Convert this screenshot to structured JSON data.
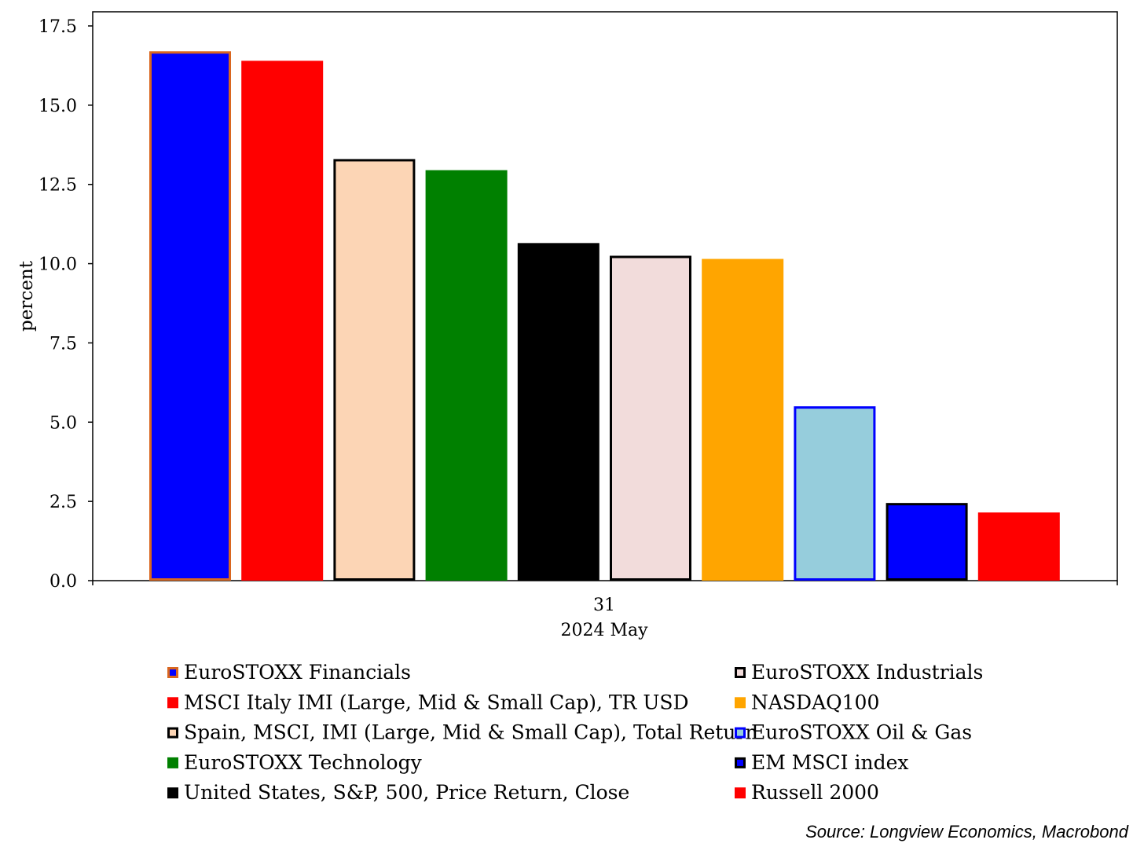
{
  "chart_data": {
    "type": "bar",
    "title": "",
    "ylabel": "percent",
    "xlabel": "",
    "ylim": [
      0,
      17.5
    ],
    "yticks": [
      "0.0",
      "2.5",
      "5.0",
      "7.5",
      "10.0",
      "12.5",
      "15.0",
      "17.5"
    ],
    "ytick_values": [
      0,
      2.5,
      5,
      7.5,
      10,
      12.5,
      15,
      17.5
    ],
    "x_tick_label": "31",
    "x_group_label": "2024 May",
    "grid": false,
    "legend_position": "bottom",
    "series": [
      {
        "name": "EuroSTOXX Financials",
        "value": 16.7,
        "fill": "#0000ff",
        "stroke": "#d9661f"
      },
      {
        "name": "MSCI Italy IMI (Large, Mid & Small Cap), TR USD",
        "value": 16.4,
        "fill": "#ff0000",
        "stroke": "#ff0000"
      },
      {
        "name": "Spain, MSCI, IMI (Large, Mid & Small Cap), Total Return",
        "value": 13.3,
        "fill": "#fcd5b5",
        "stroke": "#000000"
      },
      {
        "name": "EuroSTOXX Technology",
        "value": 12.95,
        "fill": "#008000",
        "stroke": "#008000"
      },
      {
        "name": "United States, S&P, 500, Price Return, Close",
        "value": 10.65,
        "fill": "#000000",
        "stroke": "#000000"
      },
      {
        "name": "EuroSTOXX Industrials",
        "value": 10.25,
        "fill": "#f2dcdb",
        "stroke": "#000000"
      },
      {
        "name": "NASDAQ100",
        "value": 10.15,
        "fill": "#ffa500",
        "stroke": "#ffa500"
      },
      {
        "name": "EuroSTOXX Oil & Gas",
        "value": 5.5,
        "fill": "#96cddc",
        "stroke": "#0000ff"
      },
      {
        "name": "EM MSCI index",
        "value": 2.45,
        "fill": "#0000ff",
        "stroke": "#000000"
      },
      {
        "name": "Russell 2000",
        "value": 2.15,
        "fill": "#ff0000",
        "stroke": "#ff0000"
      }
    ],
    "legend_order": [
      0,
      1,
      2,
      3,
      4,
      5,
      6,
      7,
      8,
      9
    ]
  },
  "source": "Source: Longview Economics, Macrobond"
}
